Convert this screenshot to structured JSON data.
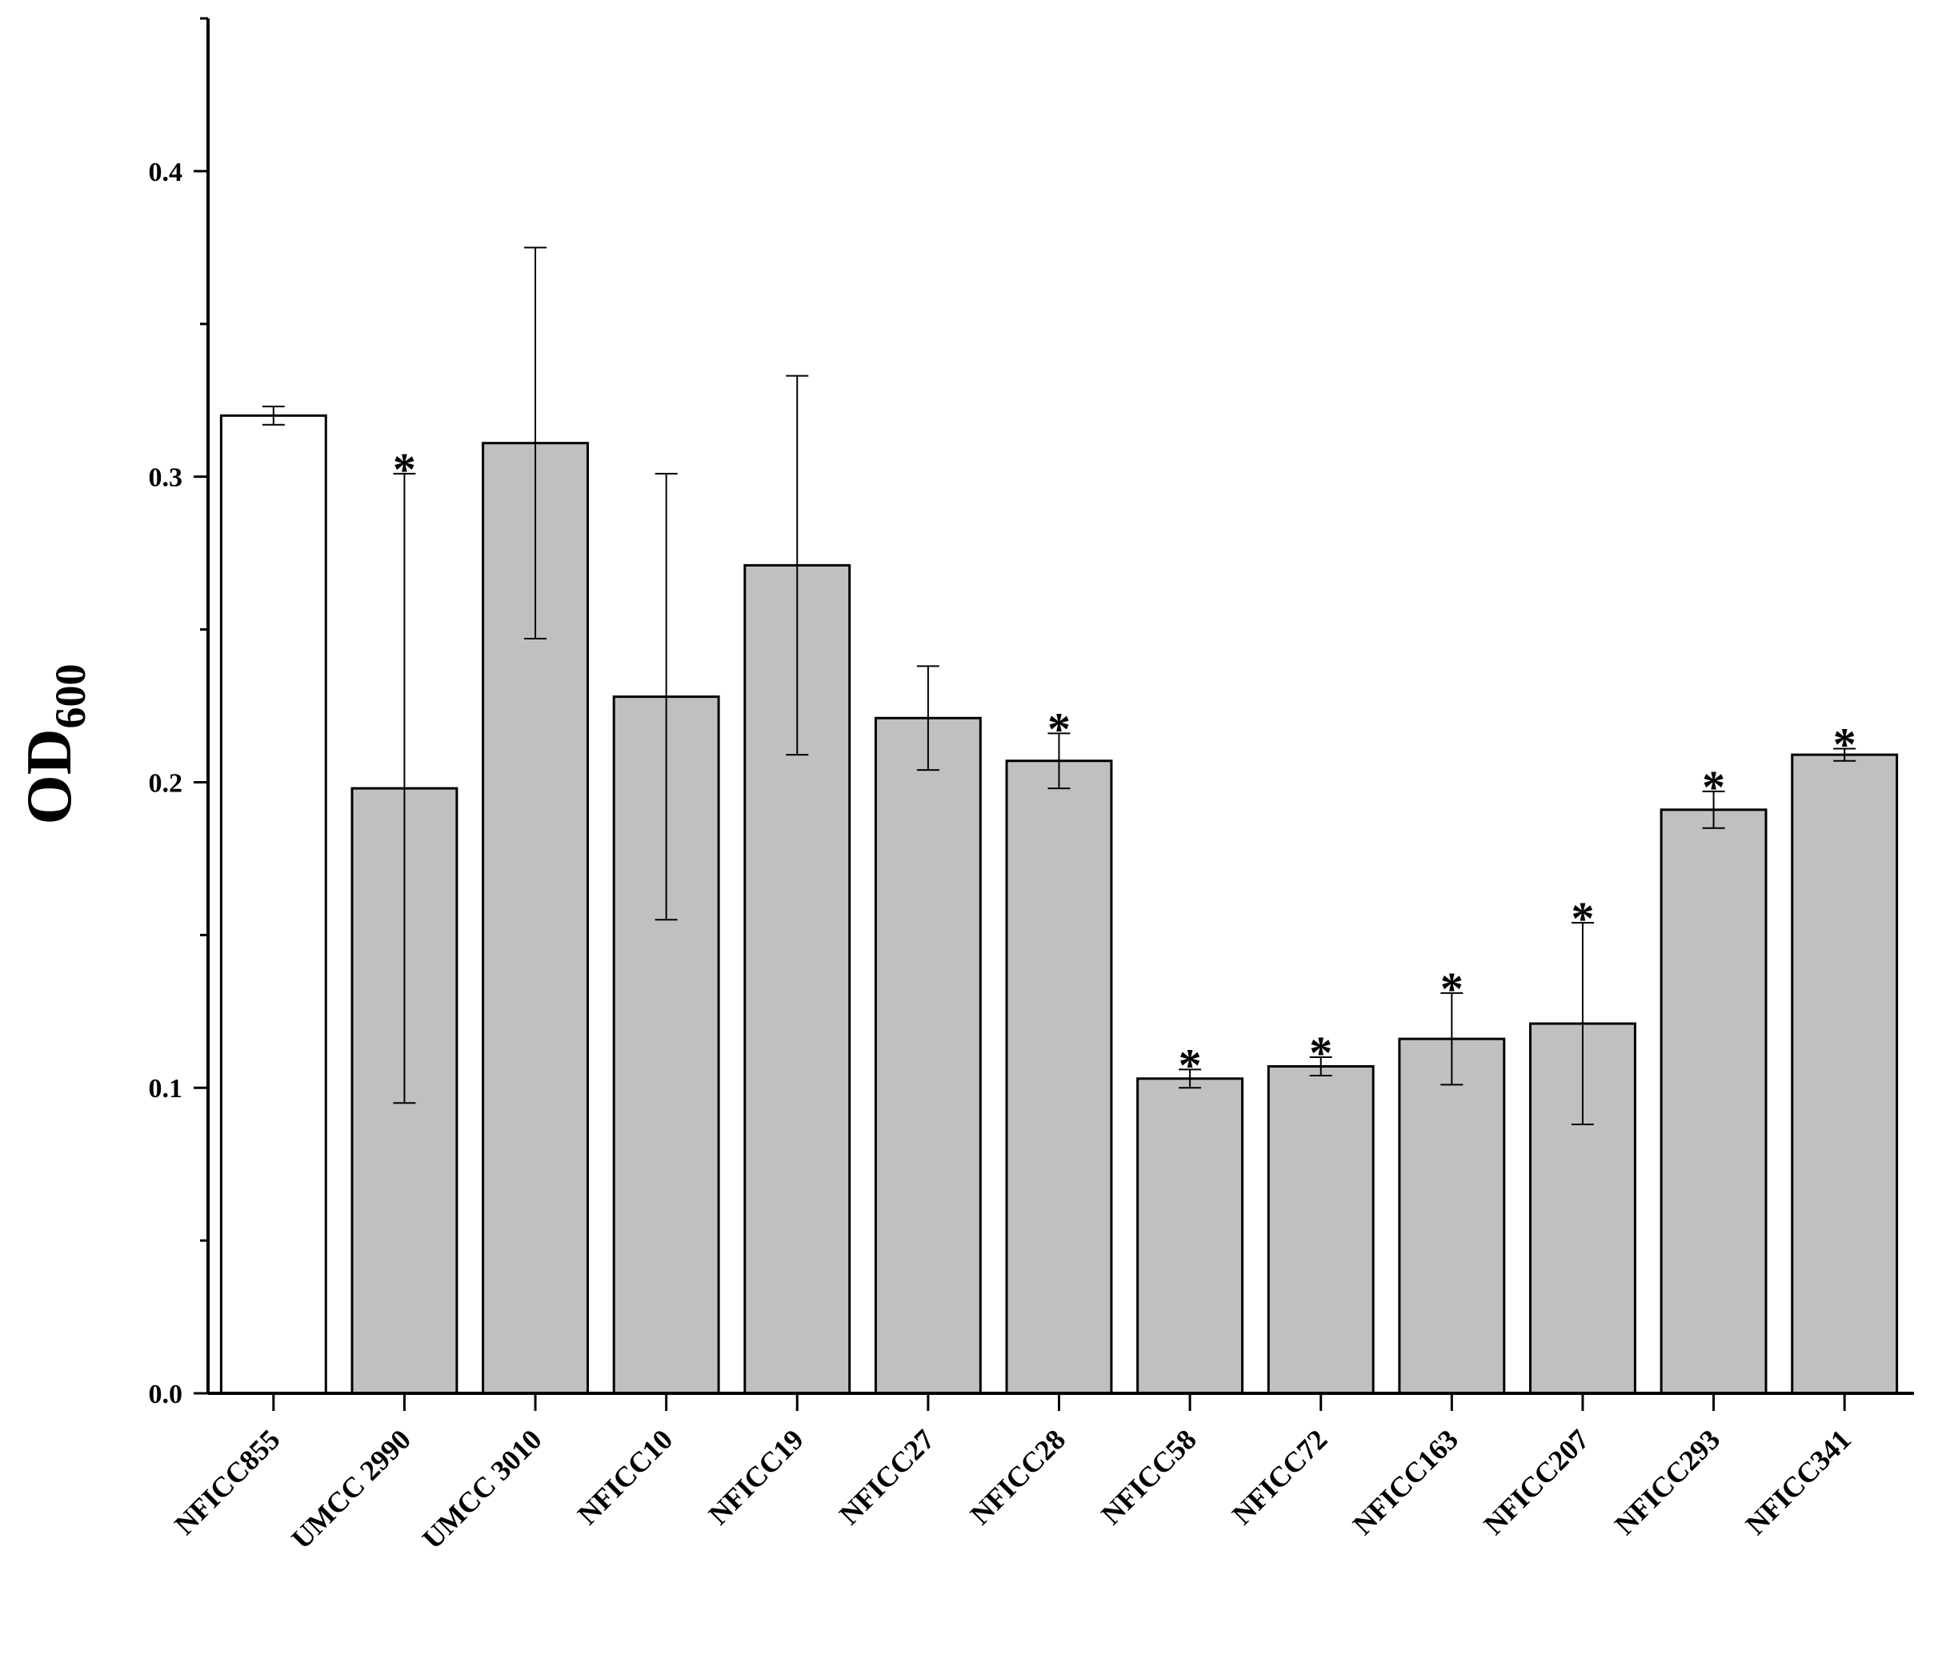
{
  "chart_data": {
    "type": "bar",
    "ylabel": "OD",
    "ylabel_subscript": "600",
    "categories": [
      "NFICC855",
      "UMCC 2990",
      "UMCC 3010",
      "NFICC10",
      "NFICC19",
      "NFICC27",
      "NFICC28",
      "NFICC58",
      "NFICC72",
      "NFICC163",
      "NFICC207",
      "NFICC293",
      "NFICC341"
    ],
    "values": [
      0.32,
      0.198,
      0.311,
      0.228,
      0.271,
      0.221,
      0.207,
      0.103,
      0.107,
      0.116,
      0.121,
      0.191,
      0.209
    ],
    "errors": [
      0.003,
      0.103,
      0.064,
      0.073,
      0.062,
      0.017,
      0.009,
      0.003,
      0.003,
      0.015,
      0.033,
      0.006,
      0.002
    ],
    "significance": [
      null,
      "*",
      null,
      null,
      null,
      null,
      "*",
      "*",
      "*",
      "*",
      "*",
      "*",
      "*"
    ],
    "colors": [
      "#ffffff",
      "#c0c0c0",
      "#c0c0c0",
      "#c0c0c0",
      "#c0c0c0",
      "#c0c0c0",
      "#c0c0c0",
      "#c0c0c0",
      "#c0c0c0",
      "#c0c0c0",
      "#c0c0c0",
      "#c0c0c0",
      "#c0c0c0"
    ],
    "ylim": [
      0,
      0.45
    ],
    "yticks": [
      {
        "value": 0,
        "label": "0.0"
      },
      0.1,
      0.2,
      0.3,
      0.4
    ],
    "minor_yticks": [
      0.05,
      0.15,
      0.25,
      0.35,
      0.45
    ],
    "grid": false
  }
}
